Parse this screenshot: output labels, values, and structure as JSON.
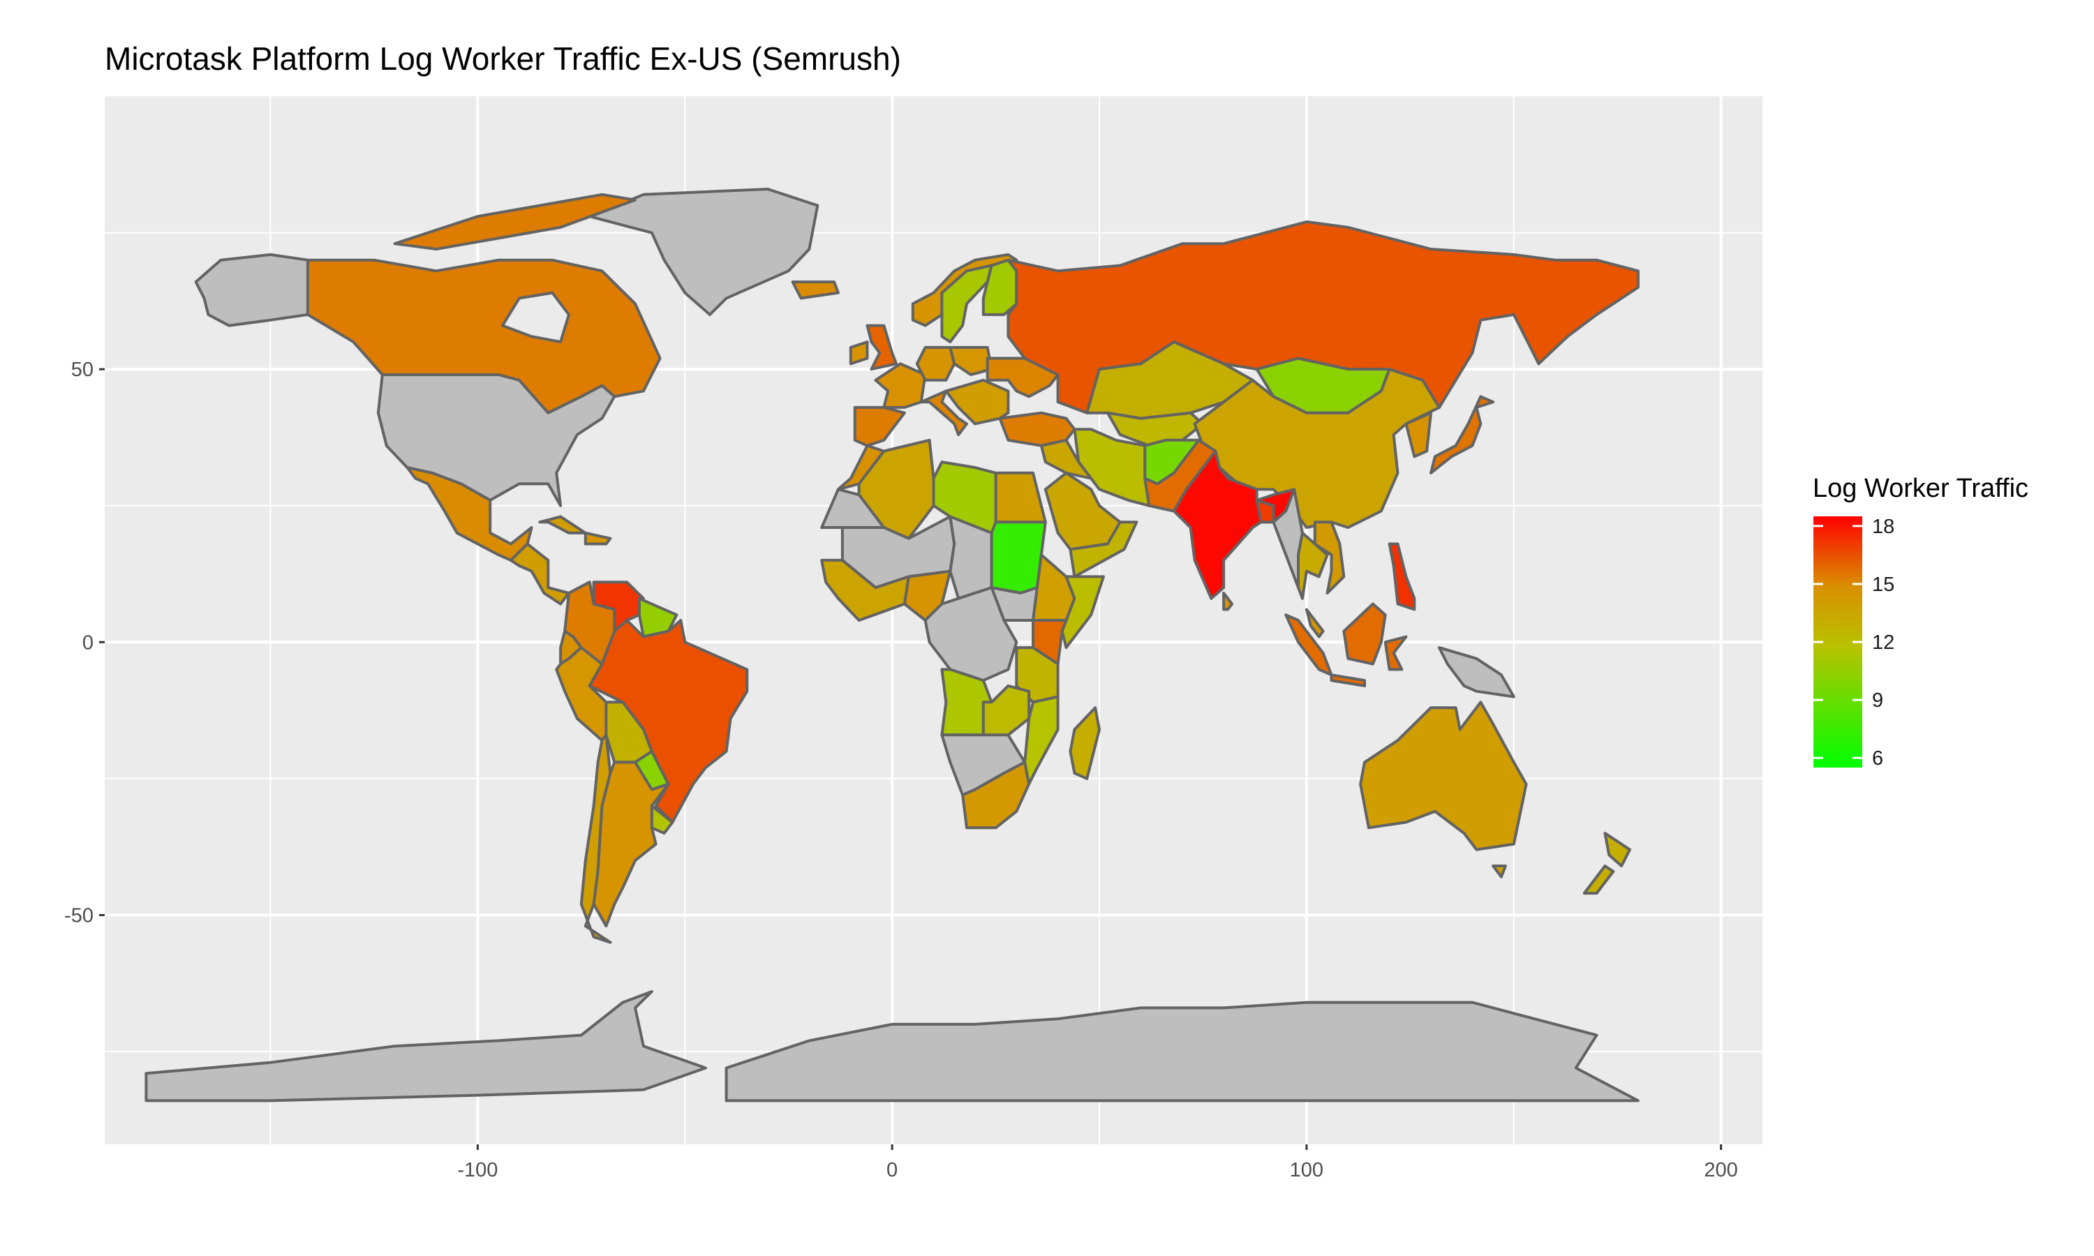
{
  "title": "Microtask Platform Log Worker Traffic Ex-US (Semrush)",
  "colors": {
    "panel_bg": "#ebebeb",
    "grid": "#ffffff",
    "no_data": "#bebebe",
    "border": "#636363",
    "scale_low": "#00ff00",
    "scale_mid": "#cfa200",
    "scale_high": "#ff0000"
  },
  "axes": {
    "x_ticks": [
      "-100",
      "0",
      "100",
      "200"
    ],
    "y_ticks": [
      "50",
      "0",
      "-50"
    ]
  },
  "legend": {
    "title": "Log Worker Traffic",
    "labels": [
      "18",
      "15",
      "12",
      "9",
      "6"
    ]
  },
  "chart_data": {
    "type": "choropleth",
    "title": "Microtask Platform Log Worker Traffic Ex-US (Semrush)",
    "xlim": [
      -190,
      210
    ],
    "ylim": [
      -92,
      100
    ],
    "x_ticks": [
      -100,
      0,
      100,
      200
    ],
    "y_ticks": [
      50,
      0,
      -50
    ],
    "color_scale": {
      "title": "Log Worker Traffic",
      "min": 5.5,
      "max": 18.5,
      "breaks": [
        18,
        15,
        12,
        9,
        6
      ]
    },
    "grid": true,
    "legend_position": "right",
    "regions": [
      {
        "name": "India",
        "value": 18.3
      },
      {
        "name": "Russia",
        "value": 16.4
      },
      {
        "name": "Brazil",
        "value": 16.5
      },
      {
        "name": "Canada",
        "value": 15.4
      },
      {
        "name": "Venezuela",
        "value": 17.2
      },
      {
        "name": "Philippines",
        "value": 17.3
      },
      {
        "name": "Bangladesh",
        "value": 17.0
      },
      {
        "name": "Indonesia",
        "value": 15.8
      },
      {
        "name": "Pakistan",
        "value": 15.8
      },
      {
        "name": "Kenya",
        "value": 15.9
      },
      {
        "name": "United Kingdom",
        "value": 16.0
      },
      {
        "name": "Japan",
        "value": 15.6
      },
      {
        "name": "Mexico",
        "value": 15.0
      },
      {
        "name": "Argentina",
        "value": 14.6
      },
      {
        "name": "Australia",
        "value": 14.0
      },
      {
        "name": "China",
        "value": 13.6
      },
      {
        "name": "Egypt",
        "value": 14.0
      },
      {
        "name": "Saudi Arabia",
        "value": 13.4
      },
      {
        "name": "Kazakhstan",
        "value": 12.9
      },
      {
        "name": "South Africa",
        "value": 14.4
      },
      {
        "name": "Nigeria",
        "value": 14.6
      },
      {
        "name": "Algeria",
        "value": 13.6
      },
      {
        "name": "Iran",
        "value": 12.0
      },
      {
        "name": "Colombia",
        "value": 15.4
      },
      {
        "name": "Peru",
        "value": 14.5
      },
      {
        "name": "Bolivia",
        "value": 12.8
      },
      {
        "name": "Madagascar",
        "value": 13.0
      },
      {
        "name": "New Zealand",
        "value": 13.0
      },
      {
        "name": "Libya",
        "value": 11.0
      },
      {
        "name": "Angola",
        "value": 11.3
      },
      {
        "name": "Mongolia",
        "value": 10.2
      },
      {
        "name": "Afghanistan",
        "value": 9.5
      },
      {
        "name": "Sudan",
        "value": 7.3
      },
      {
        "name": "Paraguay",
        "value": 10.1
      },
      {
        "name": "Sweden",
        "value": 11.2
      },
      {
        "name": "Finland",
        "value": 11.0
      },
      {
        "name": "Norway",
        "value": 14.6
      },
      {
        "name": "Spain",
        "value": 15.4
      },
      {
        "name": "Italy",
        "value": 15.2
      },
      {
        "name": "Thailand",
        "value": 13.2
      },
      {
        "name": "Vietnam",
        "value": 14.3
      },
      {
        "name": "Uruguay",
        "value": 11.5
      },
      {
        "name": "Chile",
        "value": 14.0
      },
      {
        "name": "Tanzania",
        "value": 12.6
      },
      {
        "name": "Mozambique",
        "value": 11.6
      },
      {
        "name": "Somalia",
        "value": 12.0
      },
      {
        "name": "Ethiopia",
        "value": 13.9
      }
    ]
  }
}
